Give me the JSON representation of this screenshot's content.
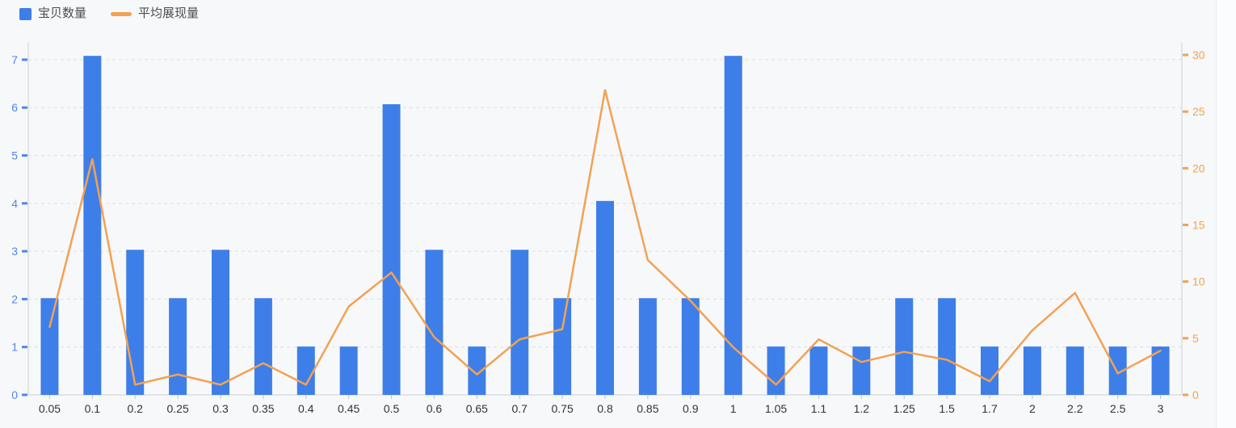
{
  "page": {
    "background": "#f7f8fa"
  },
  "legend": {
    "items": [
      {
        "label": "宝贝数量",
        "type": "bar",
        "color": "#3e7ee8"
      },
      {
        "label": "平均展现量",
        "type": "line",
        "color": "#f2a252"
      }
    ]
  },
  "chart_data": {
    "type": "bar+line",
    "title": "",
    "xlabel": "",
    "ylabel_left": "",
    "ylabel_right": "",
    "grid": "horizontal dashed gridlines from left axis",
    "legend_position": "top-left",
    "categories": [
      "0.05",
      "0.1",
      "0.2",
      "0.25",
      "0.3",
      "0.35",
      "0.4",
      "0.45",
      "0.5",
      "0.6",
      "0.65",
      "0.7",
      "0.75",
      "0.8",
      "0.85",
      "0.9",
      "1",
      "1.05",
      "1.1",
      "1.2",
      "1.25",
      "1.5",
      "1.7",
      "2",
      "2.2",
      "2.5",
      "3"
    ],
    "series": [
      {
        "name": "宝贝数量",
        "type": "bar",
        "axis": "left",
        "color": "#3e7ee8",
        "values": [
          2.02,
          7.08,
          3.03,
          2.02,
          3.03,
          2.02,
          1.01,
          1.01,
          6.07,
          3.03,
          1.01,
          3.03,
          2.02,
          4.05,
          2.02,
          2.02,
          7.08,
          1.01,
          1.01,
          1.01,
          2.02,
          2.02,
          1.01,
          1.01,
          1.01,
          1.01,
          1.01
        ]
      },
      {
        "name": "平均展现量",
        "type": "line",
        "axis": "right",
        "color": "#f2a252",
        "values": [
          6.0,
          20.8,
          0.9,
          1.8,
          0.9,
          2.8,
          0.9,
          7.8,
          10.8,
          5.1,
          1.8,
          4.9,
          5.8,
          26.9,
          11.9,
          8.3,
          4.2,
          0.9,
          4.9,
          2.9,
          3.8,
          3.1,
          1.2,
          5.7,
          9.0,
          1.9,
          3.9
        ]
      }
    ],
    "left_axis": {
      "ticks": [
        0,
        1,
        2,
        3,
        4,
        5,
        6,
        7
      ],
      "min": 0,
      "max": 7.1,
      "label_color": "#4f86ec"
    },
    "right_axis": {
      "ticks": [
        0,
        5,
        10,
        15,
        20,
        25,
        30
      ],
      "min": 0,
      "max": 30,
      "label_color": "#f2a252"
    },
    "x_axis": {
      "label_color": "#333333",
      "tick_color": "#c0c4cc",
      "axis_line_color": "#cdd0d6"
    },
    "gridline_color": "#dcdfe4"
  }
}
